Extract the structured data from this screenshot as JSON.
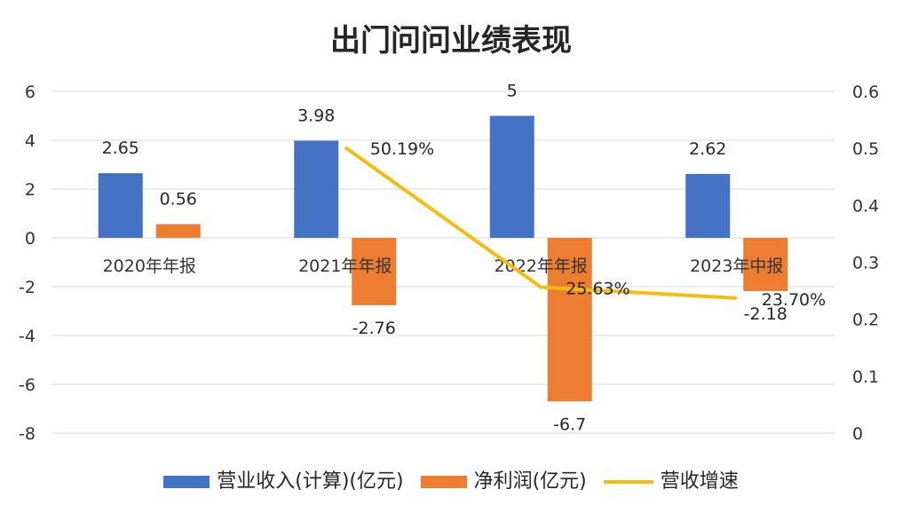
{
  "chart_data": {
    "type": "bar",
    "title": "出门问问业绩表现",
    "categories": [
      "2020年年报",
      "2021年年报",
      "2022年年报",
      "2023年中报"
    ],
    "series": [
      {
        "name": "营业收入(计算)(亿元)",
        "type": "bar",
        "axis": "left",
        "color": "#4472C4",
        "values": [
          2.65,
          3.98,
          5,
          2.62
        ],
        "labels": [
          "2.65",
          "3.98",
          "5",
          "2.62"
        ]
      },
      {
        "name": "净利润(亿元)",
        "type": "bar",
        "axis": "left",
        "color": "#ED7D31",
        "values": [
          0.56,
          -2.76,
          -6.7,
          -2.18
        ],
        "labels": [
          "0.56",
          "-2.76",
          "-6.7",
          "-2.18"
        ]
      },
      {
        "name": "营收增速",
        "type": "line",
        "axis": "right",
        "color": "#F5BD0F",
        "values": [
          null,
          0.5019,
          0.2563,
          0.237
        ],
        "labels": [
          "",
          "50.19%",
          "25.63%",
          "23.70%"
        ]
      }
    ],
    "left_axis": {
      "ylim": [
        -8,
        6
      ],
      "ticks": [
        "6",
        "4",
        "2",
        "0",
        "-2",
        "-4",
        "-6",
        "-8"
      ]
    },
    "right_axis": {
      "ylim": [
        0,
        0.6
      ],
      "ticks": [
        "0.6",
        "0.5",
        "0.4",
        "0.3",
        "0.2",
        "0.1",
        "0"
      ]
    },
    "grid": true,
    "legend_position": "bottom"
  }
}
